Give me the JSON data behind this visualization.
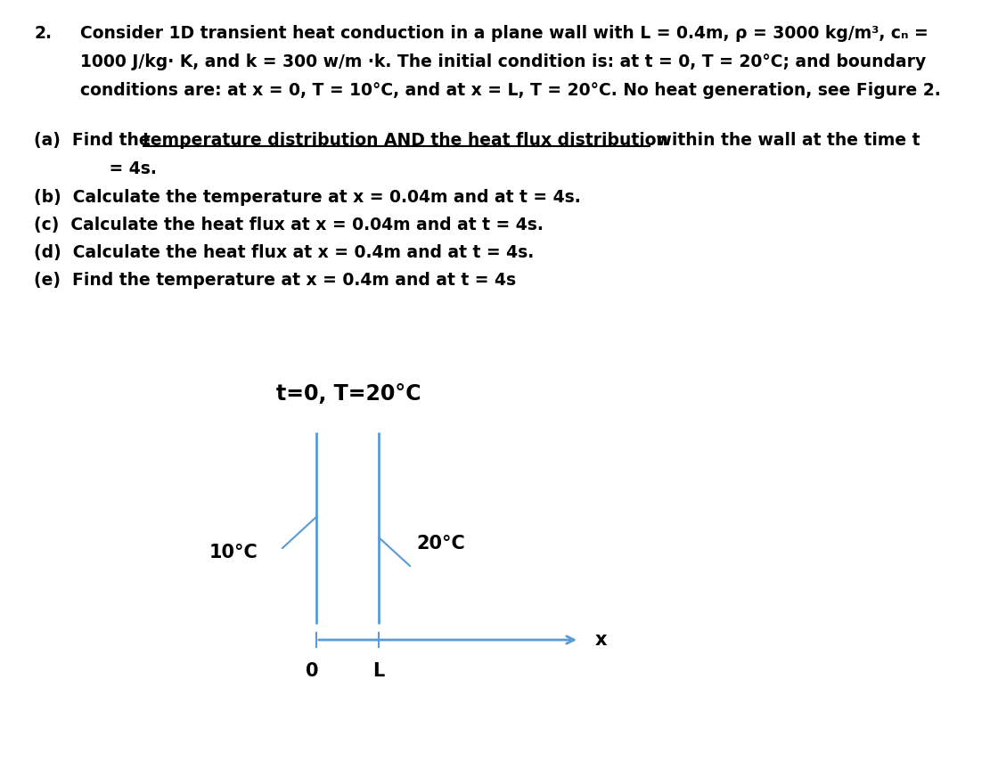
{
  "bg_color": "#ffffff",
  "text_color": "#000000",
  "blue_color": "#5b9bd5",
  "problem_number": "2.",
  "problem_text_line1": "Consider 1D transient heat conduction in a plane wall with L = 0.4m, ρ = 3000 kg/m³, cₙ =",
  "problem_text_line2": "1000 J/kg· K, and k = 300 w/m ·k. The initial condition is: at t = 0, T = 20°C; and boundary",
  "problem_text_line3": "conditions are: at x = 0, T = 10°C, and at x = L, T = 20°C. No heat generation, see Figure 2.",
  "part_a_prefix": "(a)  Find the ",
  "part_a_underlined": "temperature distribution AND the heat flux distribution",
  "part_a_suffix": " within the wall at the time t",
  "part_a2": "     = 4s.",
  "part_b": "(b)  Calculate the temperature at x = 0.04m and at t = 4s.",
  "part_c": "(c)  Calculate the heat flux at x = 0.04m and at t = 4s.",
  "part_d": "(d)  Calculate the heat flux at x = 0.4m and at t = 4s.",
  "part_e": "(e)  Find the temperature at x = 0.4m and at t = 4s",
  "fig_title": "t=0, T=20°C",
  "label_left": "10°C",
  "label_right": "20°C",
  "label_0": "0",
  "label_L": "L",
  "label_x": "x",
  "font_size_main": 13.5,
  "font_size_fig_title": 17,
  "font_size_diagram": 15
}
